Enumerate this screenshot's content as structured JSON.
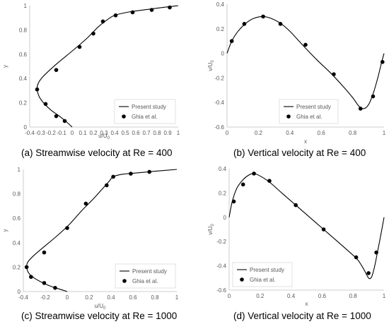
{
  "chart_data": [
    {
      "type": "line",
      "caption": "(a) Streamwise velocity at Re = 400",
      "xlabel": "u/U",
      "xlabel_sub": "0",
      "ylabel": "y",
      "xlim": [
        -0.4,
        1
      ],
      "ylim": [
        0,
        1
      ],
      "xticks": [
        "-0.4",
        "-0.3",
        "-0.2",
        "-0.1",
        "0",
        "0.1",
        "0.2",
        "0.3",
        "0.4",
        "0.5",
        "0.6",
        "0.7",
        "0.8",
        "0.9",
        "1"
      ],
      "xtick_values": [
        -0.4,
        -0.3,
        -0.2,
        -0.1,
        0,
        0.1,
        0.2,
        0.3,
        0.4,
        0.5,
        0.6,
        0.7,
        0.8,
        0.9,
        1
      ],
      "yticks": [
        "0",
        "0.2",
        "0.4",
        "0.6",
        "0.8",
        "1"
      ],
      "ytick_values": [
        0,
        0.2,
        0.4,
        0.6,
        0.8,
        1
      ],
      "legend": [
        "Present study",
        "Ghia et al."
      ],
      "series": [
        {
          "name": "Present study",
          "kind": "line",
          "x": [
            0,
            -0.05,
            -0.12,
            -0.2,
            -0.27,
            -0.31,
            -0.33,
            -0.32,
            -0.27,
            -0.16,
            -0.05,
            0.06,
            0.15,
            0.24,
            0.31,
            0.4,
            0.55,
            0.72,
            0.9,
            1.0
          ],
          "y": [
            0,
            0.04,
            0.09,
            0.14,
            0.2,
            0.25,
            0.31,
            0.36,
            0.42,
            0.51,
            0.59,
            0.67,
            0.74,
            0.82,
            0.87,
            0.92,
            0.95,
            0.97,
            0.99,
            1.0
          ]
        },
        {
          "name": "Ghia et al.",
          "kind": "marker",
          "x": [
            -0.07,
            -0.15,
            -0.25,
            -0.33,
            -0.15,
            0.07,
            0.2,
            0.29,
            0.41,
            0.57,
            0.75,
            0.92
          ],
          "y": [
            0.05,
            0.09,
            0.19,
            0.31,
            0.47,
            0.66,
            0.77,
            0.87,
            0.92,
            0.945,
            0.965,
            0.985
          ]
        }
      ]
    },
    {
      "type": "line",
      "caption": "(b) Vertical velocity at Re = 400",
      "xlabel": "x",
      "ylabel": "v/U",
      "ylabel_sub": "0",
      "xlim": [
        0,
        1
      ],
      "ylim": [
        -0.6,
        0.4
      ],
      "xticks": [
        "0",
        "0.2",
        "0.4",
        "0.6",
        "0.8",
        "1"
      ],
      "xtick_values": [
        0,
        0.2,
        0.4,
        0.6,
        0.8,
        1
      ],
      "yticks": [
        "-0.6",
        "-0.4",
        "-0.2",
        "0",
        "0.2",
        "0.4"
      ],
      "ytick_values": [
        -0.6,
        -0.4,
        -0.2,
        0,
        0.2,
        0.4
      ],
      "legend": [
        "Present study",
        "Ghia et al."
      ],
      "series": [
        {
          "name": "Present study",
          "kind": "line",
          "x": [
            0,
            0.03,
            0.07,
            0.12,
            0.17,
            0.23,
            0.28,
            0.34,
            0.4,
            0.48,
            0.57,
            0.66,
            0.74,
            0.8,
            0.84,
            0.87,
            0.9,
            0.93,
            0.96,
            0.985,
            1.0
          ],
          "y": [
            0,
            0.1,
            0.18,
            0.245,
            0.285,
            0.3,
            0.285,
            0.245,
            0.18,
            0.07,
            -0.05,
            -0.16,
            -0.27,
            -0.36,
            -0.43,
            -0.45,
            -0.42,
            -0.33,
            -0.2,
            -0.07,
            0
          ]
        },
        {
          "name": "Ghia et al.",
          "kind": "marker",
          "x": [
            0.03,
            0.11,
            0.23,
            0.34,
            0.5,
            0.68,
            0.85,
            0.93,
            0.99
          ],
          "y": [
            0.1,
            0.24,
            0.3,
            0.24,
            0.07,
            -0.17,
            -0.45,
            -0.35,
            -0.07
          ]
        }
      ]
    },
    {
      "type": "line",
      "caption": "(c) Streamwise velocity at Re = 1000",
      "xlabel": "u/U",
      "xlabel_sub": "0",
      "ylabel": "y",
      "xlim": [
        -0.4,
        1
      ],
      "ylim": [
        0,
        1
      ],
      "xticks": [
        "-0.4",
        "-0.2",
        "0",
        "0.2",
        "0.4",
        "0.6",
        "0.8",
        "1"
      ],
      "xtick_values": [
        -0.4,
        -0.2,
        0,
        0.2,
        0.4,
        0.6,
        0.8,
        1
      ],
      "yticks": [
        "0",
        "0.2",
        "0.4",
        "0.6",
        "0.8",
        "1"
      ],
      "ytick_values": [
        0,
        0.2,
        0.4,
        0.6,
        0.8,
        1
      ],
      "legend": [
        "Present study",
        "Ghia et al."
      ],
      "series": [
        {
          "name": "Present study",
          "kind": "line",
          "x": [
            0,
            -0.07,
            -0.14,
            -0.22,
            -0.3,
            -0.35,
            -0.37,
            -0.36,
            -0.31,
            -0.22,
            -0.1,
            0.02,
            0.13,
            0.24,
            0.33,
            0.38,
            0.42,
            0.5,
            0.62,
            0.8,
            1.0
          ],
          "y": [
            0,
            0.02,
            0.04,
            0.07,
            0.11,
            0.15,
            0.2,
            0.24,
            0.29,
            0.36,
            0.45,
            0.55,
            0.66,
            0.76,
            0.85,
            0.9,
            0.94,
            0.96,
            0.97,
            0.985,
            1.0
          ]
        },
        {
          "name": "Ghia et al.",
          "kind": "marker",
          "x": [
            -0.11,
            -0.21,
            -0.33,
            -0.37,
            -0.21,
            0.0,
            0.17,
            0.36,
            0.42,
            0.58,
            0.75
          ],
          "y": [
            0.03,
            0.07,
            0.12,
            0.2,
            0.32,
            0.52,
            0.72,
            0.87,
            0.94,
            0.965,
            0.98
          ]
        }
      ]
    },
    {
      "type": "line",
      "caption": "(d) Vertical velocity at Re = 1000",
      "xlabel": "x",
      "ylabel": "v/U",
      "ylabel_sub": "0",
      "xlim": [
        0,
        1
      ],
      "ylim": [
        -0.6,
        0.4
      ],
      "xticks": [
        "0",
        "0.2",
        "0.4",
        "0.6",
        "0.8",
        "1"
      ],
      "xtick_values": [
        0,
        0.2,
        0.4,
        0.6,
        0.8,
        1
      ],
      "yticks": [
        "-0.6",
        "-0.4",
        "-0.2",
        "0",
        "0.2",
        "0.4"
      ],
      "ytick_values": [
        -0.6,
        -0.4,
        -0.2,
        0,
        0.2,
        0.4
      ],
      "legend": [
        "Present study",
        "Ghia et al."
      ],
      "series": [
        {
          "name": "Present study",
          "kind": "line",
          "x": [
            0,
            0.02,
            0.05,
            0.09,
            0.13,
            0.16,
            0.2,
            0.26,
            0.34,
            0.43,
            0.52,
            0.61,
            0.7,
            0.78,
            0.83,
            0.87,
            0.9,
            0.92,
            0.94,
            0.96,
            0.98,
            1.0
          ],
          "y": [
            0,
            0.13,
            0.24,
            0.31,
            0.35,
            0.36,
            0.34,
            0.29,
            0.2,
            0.1,
            0.0,
            -0.1,
            -0.2,
            -0.29,
            -0.35,
            -0.43,
            -0.5,
            -0.49,
            -0.4,
            -0.27,
            -0.14,
            0
          ]
        },
        {
          "name": "Ghia et al.",
          "kind": "marker",
          "x": [
            0.03,
            0.09,
            0.16,
            0.26,
            0.43,
            0.61,
            0.82,
            0.9,
            0.95
          ],
          "y": [
            0.13,
            0.27,
            0.36,
            0.3,
            0.1,
            -0.1,
            -0.33,
            -0.46,
            -0.29
          ]
        }
      ]
    }
  ]
}
